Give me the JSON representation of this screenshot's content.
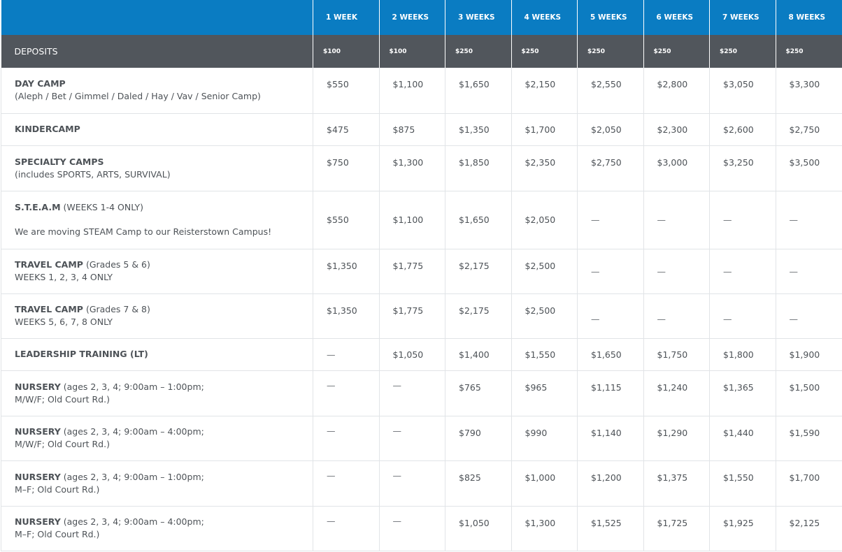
{
  "header": {
    "weeks": [
      "1 WEEK",
      "2 WEEKS",
      "3 WEEKS",
      "4 WEEKS",
      "5 WEEKS",
      "6 WEEKS",
      "7 WEEKS",
      "8 WEEKS"
    ],
    "deposits_label": "DEPOSITS",
    "deposits": [
      "$100",
      "$100",
      "$250",
      "$250",
      "$250",
      "$250",
      "$250",
      "$250"
    ]
  },
  "colors": {
    "header_blue": "#0a7cc2",
    "deposit_gray": "#51565c"
  },
  "rows": [
    {
      "title": "DAY CAMP",
      "title_suffix": "",
      "sub": "(Aleph / Bet / Gimmel / Daled / Hay / Vav / Senior Camp)",
      "prices": [
        "$550",
        "$1,100",
        "$1,650",
        "$2,150",
        "$2,550",
        "$2,800",
        "$3,050",
        "$3,300"
      ]
    },
    {
      "title": "KINDERCAMP",
      "title_suffix": "",
      "sub": "",
      "prices": [
        "$475",
        "$875",
        "$1,350",
        "$1,700",
        "$2,050",
        "$2,300",
        "$2,600",
        "$2,750"
      ]
    },
    {
      "title": "SPECIALTY CAMPS",
      "title_suffix": "",
      "sub": "(includes SPORTS, ARTS, SURVIVAL)",
      "prices": [
        "$750",
        "$1,300",
        "$1,850",
        "$2,350",
        "$2,750",
        "$3,000",
        "$3,250",
        "$3,500"
      ]
    },
    {
      "title": "S.T.E.A.M",
      "title_suffix": " (WEEKS 1-4 ONLY)",
      "sub": "We are moving STEAM Camp to our Reisterstown Campus!",
      "prices": [
        "$550",
        "$1,100",
        "$1,650",
        "$2,050",
        "—",
        "—",
        "—",
        "—"
      ]
    },
    {
      "title": "TRAVEL CAMP",
      "title_suffix": " (Grades 5 & 6)",
      "sub": "WEEKS 1, 2, 3, 4 ONLY",
      "prices": [
        "$1,350",
        "$1,775",
        "$2,175",
        "$2,500",
        "—",
        "—",
        "—",
        "—"
      ]
    },
    {
      "title": "TRAVEL CAMP",
      "title_suffix": " (Grades 7 & 8)",
      "sub": "WEEKS 5, 6, 7, 8 ONLY",
      "prices": [
        "$1,350",
        "$1,775",
        "$2,175",
        "$2,500",
        "—",
        "—",
        "—",
        "—"
      ]
    },
    {
      "title": "LEADERSHIP TRAINING (LT)",
      "title_suffix": "",
      "sub": "",
      "prices": [
        "—",
        "$1,050",
        "$1,400",
        "$1,550",
        "$1,650",
        "$1,750",
        "$1,800",
        "$1,900"
      ]
    },
    {
      "title": "NURSERY",
      "title_suffix": " (ages 2, 3, 4; 9:00am – 1:00pm;",
      "sub": "M/W/F; Old Court Rd.)",
      "prices": [
        "—",
        "—",
        "$765",
        "$965",
        "$1,115",
        "$1,240",
        "$1,365",
        "$1,500"
      ]
    },
    {
      "title": "NURSERY",
      "title_suffix": " (ages 2, 3, 4; 9:00am – 4:00pm;",
      "sub": "M/W/F; Old Court Rd.)",
      "prices": [
        "—",
        "—",
        "$790",
        "$990",
        "$1,140",
        "$1,290",
        "$1,440",
        "$1,590"
      ]
    },
    {
      "title": "NURSERY",
      "title_suffix": " (ages 2, 3, 4; 9:00am – 1:00pm;",
      "sub": "M–F; Old Court Rd.)",
      "prices": [
        "—",
        "—",
        "$825",
        "$1,000",
        "$1,200",
        "$1,375",
        "$1,550",
        "$1,700"
      ]
    },
    {
      "title": "NURSERY",
      "title_suffix": " (ages 2, 3, 4; 9:00am – 4:00pm;",
      "sub": "M–F; Old Court Rd.)",
      "prices": [
        "—",
        "—",
        "$1,050",
        "$1,300",
        "$1,525",
        "$1,725",
        "$1,925",
        "$2,125"
      ]
    }
  ]
}
